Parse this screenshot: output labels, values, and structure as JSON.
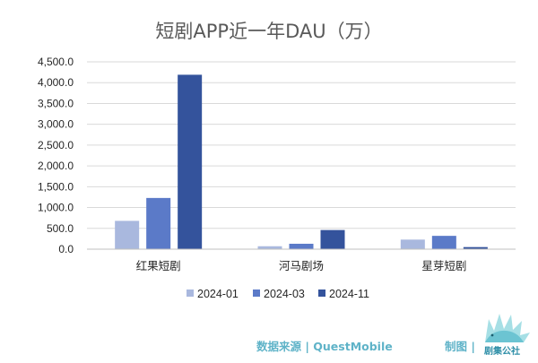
{
  "colors": {
    "series": [
      "#a9b8de",
      "#5b7ac8",
      "#34539c"
    ],
    "gridline": "#d9d9d9",
    "axis": "#bfbfbf",
    "footer": "#5fb3c8",
    "logo": "#2f8fa8"
  },
  "chart_data": {
    "type": "bar",
    "title": "短剧APP近一年DAU（万）",
    "categories": [
      "红果短剧",
      "河马剧场",
      "星芽短剧"
    ],
    "series": [
      {
        "name": "2024-01",
        "values": [
          680,
          70,
          230
        ]
      },
      {
        "name": "2024-03",
        "values": [
          1230,
          130,
          320
        ]
      },
      {
        "name": "2024-11",
        "values": [
          4190,
          460,
          50
        ]
      }
    ],
    "ylim": [
      0,
      4500
    ],
    "yticks": [
      0,
      500,
      1000,
      1500,
      2000,
      2500,
      3000,
      3500,
      4000,
      4500
    ],
    "ytick_labels": [
      "0.0",
      "500.0",
      "1,000.0",
      "1,500.0",
      "2,000.0",
      "2,500.0",
      "3,000.0",
      "3,500.0",
      "4,000.0",
      "4,500.0"
    ],
    "grid": true,
    "legend_position": "bottom"
  },
  "footer": {
    "source": "数据来源 | QuestMobile",
    "maker": "制图 |",
    "logo_text": "剧集公社",
    "logo_icon": "hedgehog-logo-icon"
  }
}
